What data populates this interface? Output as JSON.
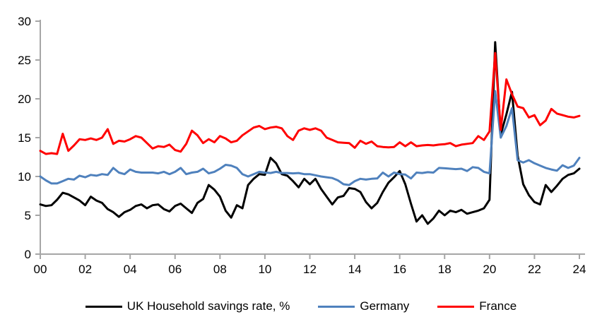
{
  "chart_data": {
    "type": "line",
    "title": "",
    "xlabel": "",
    "ylabel": "",
    "ylim": [
      0,
      30
    ],
    "y_tick_values": [
      0,
      5,
      10,
      15,
      20,
      25,
      30
    ],
    "y_tick_labels": [
      "0",
      "5",
      "10",
      "15",
      "20",
      "25",
      "30"
    ],
    "x_tick_labels": [
      "00",
      "02",
      "04",
      "06",
      "08",
      "10",
      "12",
      "14",
      "16",
      "18",
      "20",
      "22",
      "24"
    ],
    "x_frequency": "quarterly",
    "x_range": [
      "2000 Q1",
      "2024 Q1"
    ],
    "grid": false,
    "legend_position": "bottom",
    "axis_color": "#a6a6a6",
    "text_color": "#000000",
    "series": [
      {
        "name": "UK Household savings rate, %",
        "color": "#000000",
        "width": 3,
        "values": [
          6.4,
          6.2,
          6.3,
          7.0,
          7.9,
          7.7,
          7.3,
          6.9,
          6.3,
          7.4,
          6.9,
          6.6,
          5.8,
          5.4,
          4.8,
          5.4,
          5.7,
          6.2,
          6.4,
          5.9,
          6.3,
          6.4,
          5.8,
          5.5,
          6.2,
          6.5,
          5.9,
          5.3,
          6.6,
          7.1,
          8.9,
          8.3,
          7.4,
          5.6,
          4.7,
          6.3,
          5.9,
          8.9,
          9.7,
          10.3,
          10.2,
          12.4,
          11.7,
          10.3,
          10.1,
          9.4,
          8.6,
          9.7,
          9.0,
          9.7,
          8.4,
          7.4,
          6.4,
          7.3,
          7.5,
          8.5,
          8.4,
          8.0,
          6.7,
          5.9,
          6.6,
          8.0,
          9.2,
          9.9,
          10.7,
          9.0,
          6.5,
          4.2,
          5.0,
          3.9,
          4.6,
          5.6,
          5.0,
          5.6,
          5.4,
          5.7,
          5.2,
          5.4,
          5.6,
          5.9,
          7.0,
          27.3,
          15.4,
          18.0,
          20.9,
          12.7,
          9.0,
          7.6,
          6.7,
          6.4,
          8.9,
          8.0,
          8.8,
          9.7,
          10.2,
          10.4,
          11.0
        ]
      },
      {
        "name": "Germany",
        "color": "#4f81bd",
        "width": 3,
        "values": [
          10.0,
          9.5,
          9.1,
          9.1,
          9.4,
          9.7,
          9.6,
          10.1,
          9.9,
          10.2,
          10.1,
          10.3,
          10.2,
          11.1,
          10.5,
          10.3,
          10.9,
          10.6,
          10.5,
          10.5,
          10.5,
          10.4,
          10.6,
          10.3,
          10.6,
          11.1,
          10.3,
          10.5,
          10.6,
          11.0,
          10.4,
          10.6,
          11.0,
          11.5,
          11.4,
          11.1,
          10.3,
          10.0,
          10.3,
          10.6,
          10.5,
          10.45,
          10.6,
          10.45,
          10.45,
          10.4,
          10.45,
          10.3,
          10.3,
          10.15,
          10.0,
          9.9,
          9.8,
          9.5,
          9.0,
          8.9,
          9.4,
          9.7,
          9.6,
          9.7,
          9.75,
          10.5,
          10.0,
          10.5,
          10.3,
          10.25,
          9.75,
          10.5,
          10.45,
          10.55,
          10.5,
          11.1,
          11.05,
          11.0,
          10.95,
          11.0,
          10.7,
          11.2,
          11.1,
          10.6,
          10.4,
          21.0,
          15.0,
          16.5,
          18.8,
          12.1,
          11.8,
          12.1,
          11.7,
          11.4,
          11.1,
          10.9,
          10.75,
          11.45,
          11.1,
          11.4,
          12.4
        ]
      },
      {
        "name": "France",
        "color": "#ff0000",
        "width": 3,
        "values": [
          13.3,
          12.9,
          13.0,
          12.9,
          15.5,
          13.3,
          14.0,
          14.8,
          14.7,
          14.9,
          14.7,
          15.0,
          16.1,
          14.2,
          14.6,
          14.5,
          14.8,
          15.2,
          15.0,
          14.3,
          13.6,
          13.9,
          13.8,
          14.1,
          13.4,
          13.2,
          14.2,
          15.9,
          15.3,
          14.3,
          14.8,
          14.4,
          15.2,
          14.9,
          14.4,
          14.6,
          15.3,
          15.8,
          16.3,
          16.5,
          16.1,
          16.3,
          16.4,
          16.2,
          15.2,
          14.7,
          15.9,
          16.2,
          16.0,
          16.2,
          15.9,
          15.0,
          14.7,
          14.4,
          14.35,
          14.3,
          13.7,
          14.6,
          14.2,
          14.5,
          13.9,
          13.8,
          13.75,
          13.8,
          14.4,
          13.9,
          14.4,
          13.9,
          14.0,
          14.05,
          14.0,
          14.1,
          14.15,
          14.3,
          13.9,
          14.1,
          14.2,
          14.3,
          15.2,
          14.7,
          15.8,
          25.9,
          16.0,
          22.5,
          20.6,
          19.0,
          18.8,
          17.6,
          17.9,
          16.6,
          17.2,
          18.7,
          18.1,
          17.9,
          17.7,
          17.6,
          17.8
        ]
      }
    ]
  },
  "legend": {
    "items": [
      {
        "label": "UK Household savings rate, %"
      },
      {
        "label": "Germany"
      },
      {
        "label": "France"
      }
    ]
  }
}
